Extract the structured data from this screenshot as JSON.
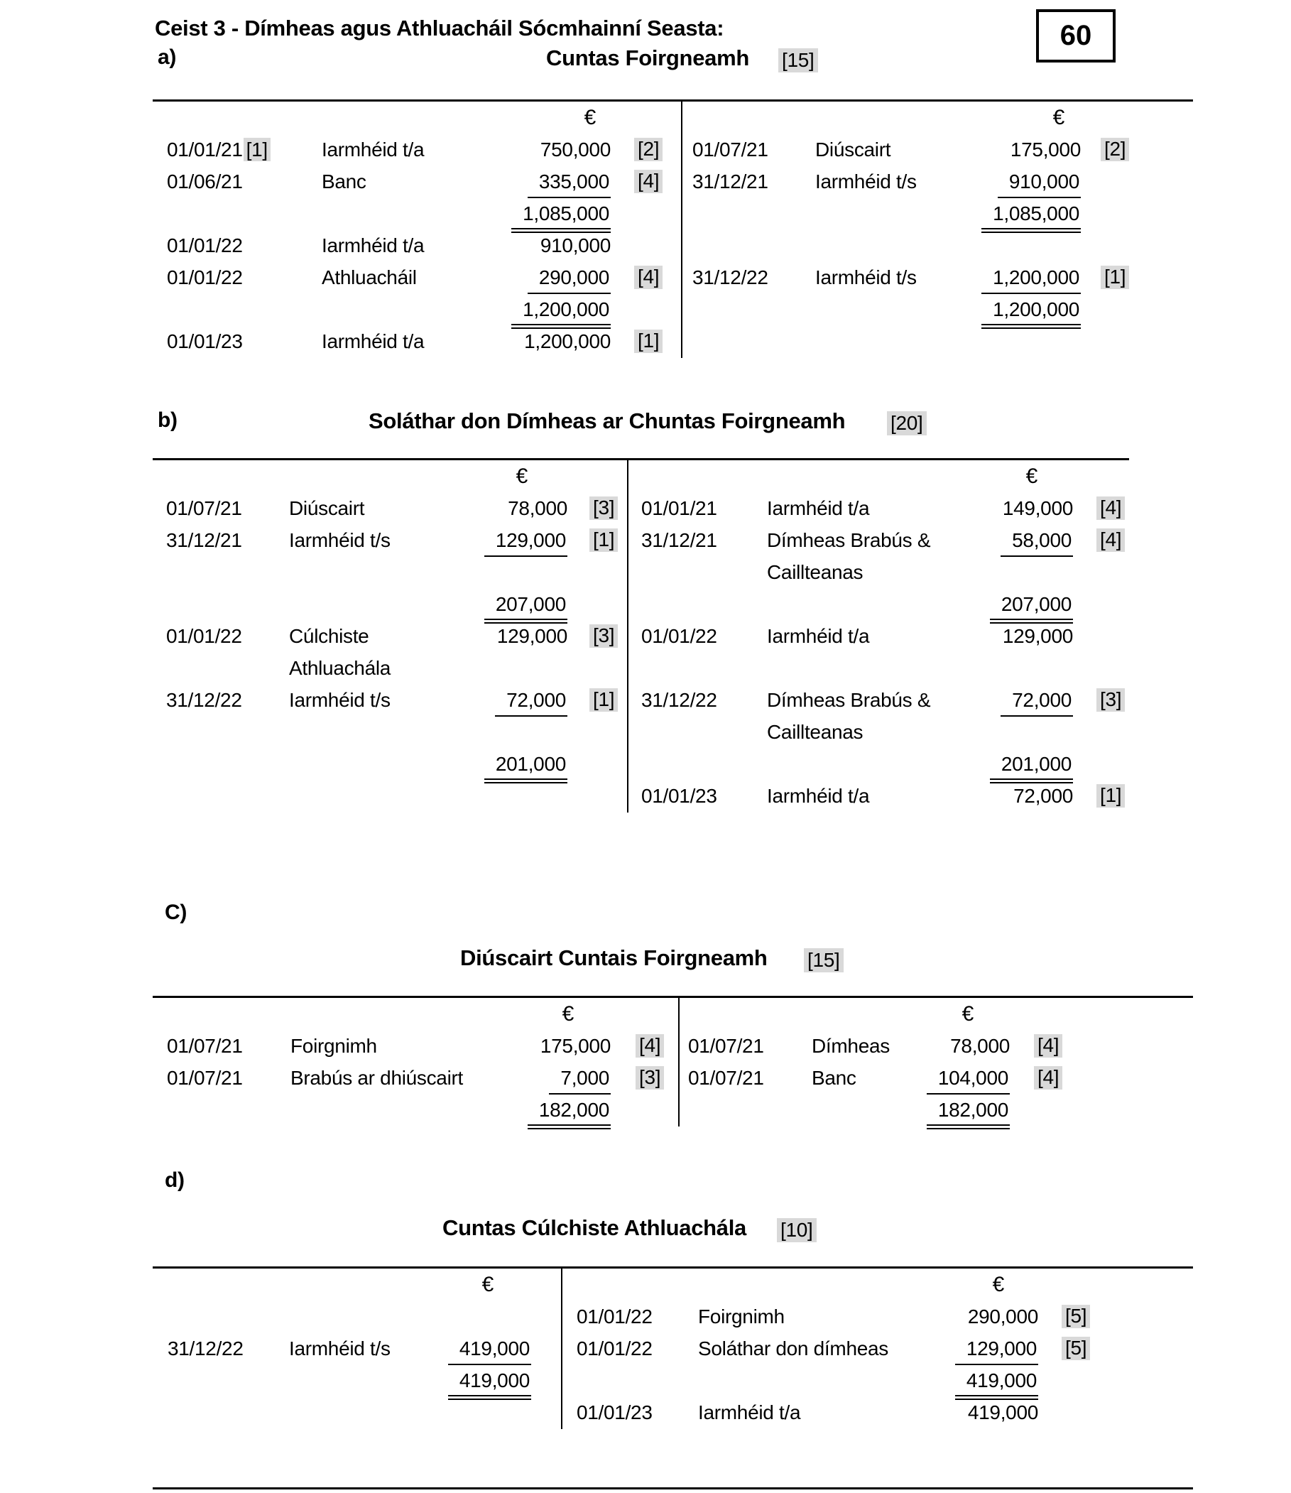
{
  "header": {
    "title": "Ceist 3 - Dímheas agus Athluacháil Sócmhainní Seasta:",
    "total_marks": "60"
  },
  "accounts": [
    {
      "id": "a",
      "label": "a)",
      "title": "Cuntas Foirgneamh",
      "marks": "[15]",
      "currency": "€",
      "left_rows": [
        {
          "d": "01/01/21",
          "dm": "[1]",
          "t": "Iarmhéid t/a",
          "a": "750,000",
          "m": "[2]"
        },
        {
          "d": "01/06/21",
          "t": "Banc",
          "a": "335,000",
          "u": "s",
          "m": "[4]"
        },
        {
          "a": "1,085,000",
          "u": "d"
        },
        {
          "d": "01/01/22",
          "t": "Iarmhéid t/a",
          "a": "910,000"
        },
        {
          "d": "01/01/22",
          "t": "Athluacháil",
          "a": "290,000",
          "u": "s",
          "m": "[4]"
        },
        {
          "a": "1,200,000",
          "u": "d"
        },
        {
          "d": "01/01/23",
          "t": "Iarmhéid t/a",
          "a": "1,200,000",
          "m": "[1]"
        }
      ],
      "right_rows": [
        {
          "d": "01/07/21",
          "t": "Diúscairt",
          "a": "175,000",
          "m": "[2]"
        },
        {
          "d": "31/12/21",
          "t": "Iarmhéid t/s",
          "a": "910,000",
          "u": "s"
        },
        {
          "a": "1,085,000",
          "u": "d"
        },
        {},
        {
          "d": "31/12/22",
          "t": "Iarmhéid t/s",
          "a": "1,200,000",
          "u": "s",
          "m": "[1]"
        },
        {
          "a": "1,200,000",
          "u": "d"
        },
        {}
      ]
    },
    {
      "id": "b",
      "label": "b)",
      "title": "Soláthar don Dímheas ar Chuntas Foirgneamh",
      "marks": "[20]",
      "currency": "€",
      "left_rows": [
        {
          "d": "01/07/21",
          "t": "Diúscairt",
          "a": "78,000",
          "m": "[3]"
        },
        {
          "d": "31/12/21",
          "t": "Iarmhéid t/s",
          "a": "129,000",
          "u": "s",
          "m": "[1]"
        },
        {},
        {
          "a": "207,000",
          "u": "d"
        },
        {
          "d": "01/01/22",
          "t": "Cúlchiste",
          "a": "129,000",
          "m": "[3]"
        },
        {
          "t": "Athluachála"
        },
        {
          "d": "31/12/22",
          "t": "Iarmhéid t/s",
          "a": "72,000",
          "u": "s",
          "m": "[1]"
        },
        {},
        {
          "a": "201,000",
          "u": "d"
        },
        {}
      ],
      "right_rows": [
        {
          "d": "01/01/21",
          "t": "Iarmhéid t/a",
          "a": "149,000",
          "m": "[4]"
        },
        {
          "d": "31/12/21",
          "t": "Dímheas Brabús &",
          "a": "58,000",
          "u": "s",
          "m": "[4]"
        },
        {
          "t": "Caillteanas"
        },
        {
          "a": "207,000",
          "u": "d"
        },
        {
          "d": "01/01/22",
          "t": "Iarmhéid t/a",
          "a": "129,000"
        },
        {},
        {
          "d": "31/12/22",
          "t": "Dímheas Brabús &",
          "a": "72,000",
          "u": "s",
          "m": "[3]"
        },
        {
          "t": "Caillteanas"
        },
        {
          "a": "201,000",
          "u": "d"
        },
        {
          "d": "01/01/23",
          "t": "Iarmhéid t/a",
          "a": "72,000",
          "m": "[1]"
        }
      ]
    },
    {
      "id": "c",
      "label": "C)",
      "title": "Diúscairt Cuntais Foirgneamh",
      "marks": "[15]",
      "currency": "€",
      "left_rows": [
        {
          "d": "01/07/21",
          "t": "Foirgnimh",
          "a": "175,000",
          "m": "[4]"
        },
        {
          "d": "01/07/21",
          "t": "Brabús ar dhiúscairt",
          "a": "7,000",
          "u": "s",
          "m": "[3]"
        },
        {
          "a": "182,000",
          "u": "d"
        }
      ],
      "right_rows": [
        {
          "d": "01/07/21",
          "t": "Dímheas",
          "a": "78,000",
          "m": "[4]"
        },
        {
          "d": "01/07/21",
          "t": "Banc",
          "a": "104,000",
          "u": "s",
          "m": "[4]"
        },
        {
          "a": "182,000",
          "u": "d"
        }
      ]
    },
    {
      "id": "d",
      "label": "d)",
      "title": "Cuntas Cúlchiste Athluachála",
      "marks": "[10]",
      "currency": "€",
      "left_rows": [
        {},
        {
          "d": "31/12/22",
          "t": "Iarmhéid t/s",
          "a": "419,000",
          "u": "s"
        },
        {
          "a": "419,000",
          "u": "d"
        },
        {}
      ],
      "right_rows": [
        {
          "d": "01/01/22",
          "t": "Foirgnimh",
          "a": "290,000",
          "m": "[5]"
        },
        {
          "d": "01/01/22",
          "t": "Soláthar don dímheas",
          "a": "129,000",
          "u": "s",
          "m": "[5]"
        },
        {
          "a": "419,000",
          "u": "d"
        },
        {
          "d": "01/01/23",
          "t": "Iarmhéid t/a",
          "a": "419,000"
        }
      ]
    }
  ]
}
